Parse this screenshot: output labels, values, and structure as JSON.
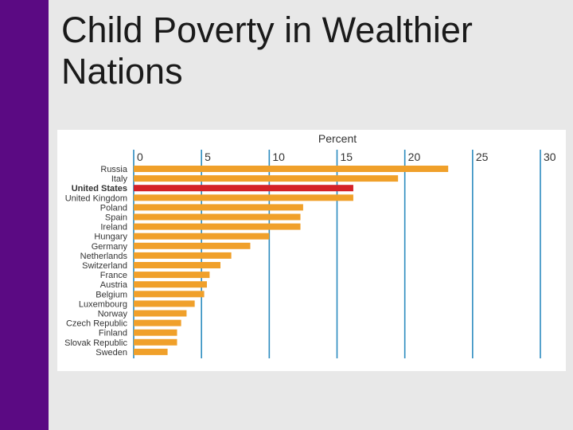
{
  "slide": {
    "title": "Child Poverty in Wealthier Nations"
  },
  "colors": {
    "accent": "#5b0a83",
    "bar": "#f0a02a",
    "highlight_bar": "#d42128",
    "grid": "#2b8bbf",
    "background": "#e8e8e8",
    "panel": "#ffffff"
  },
  "chart_data": {
    "type": "bar",
    "orientation": "horizontal",
    "xlabel": "Percent",
    "xlim": [
      0,
      30
    ],
    "xticks": [
      0,
      5,
      10,
      15,
      20,
      25,
      30
    ],
    "x_axis_position": "top",
    "grid": true,
    "highlight_category": "United States",
    "categories": [
      "Russia",
      "Italy",
      "United States",
      "United Kingdom",
      "Poland",
      "Spain",
      "Ireland",
      "Hungary",
      "Germany",
      "Netherlands",
      "Switzerland",
      "France",
      "Austria",
      "Belgium",
      "Luxembourg",
      "Norway",
      "Czech Republic",
      "Finland",
      "Slovak Republic",
      "Sweden"
    ],
    "values": [
      23.2,
      19.5,
      16.2,
      16.2,
      12.5,
      12.3,
      12.3,
      10.0,
      8.6,
      7.2,
      6.4,
      5.6,
      5.4,
      5.2,
      4.5,
      3.9,
      3.5,
      3.2,
      3.2,
      2.5
    ]
  }
}
